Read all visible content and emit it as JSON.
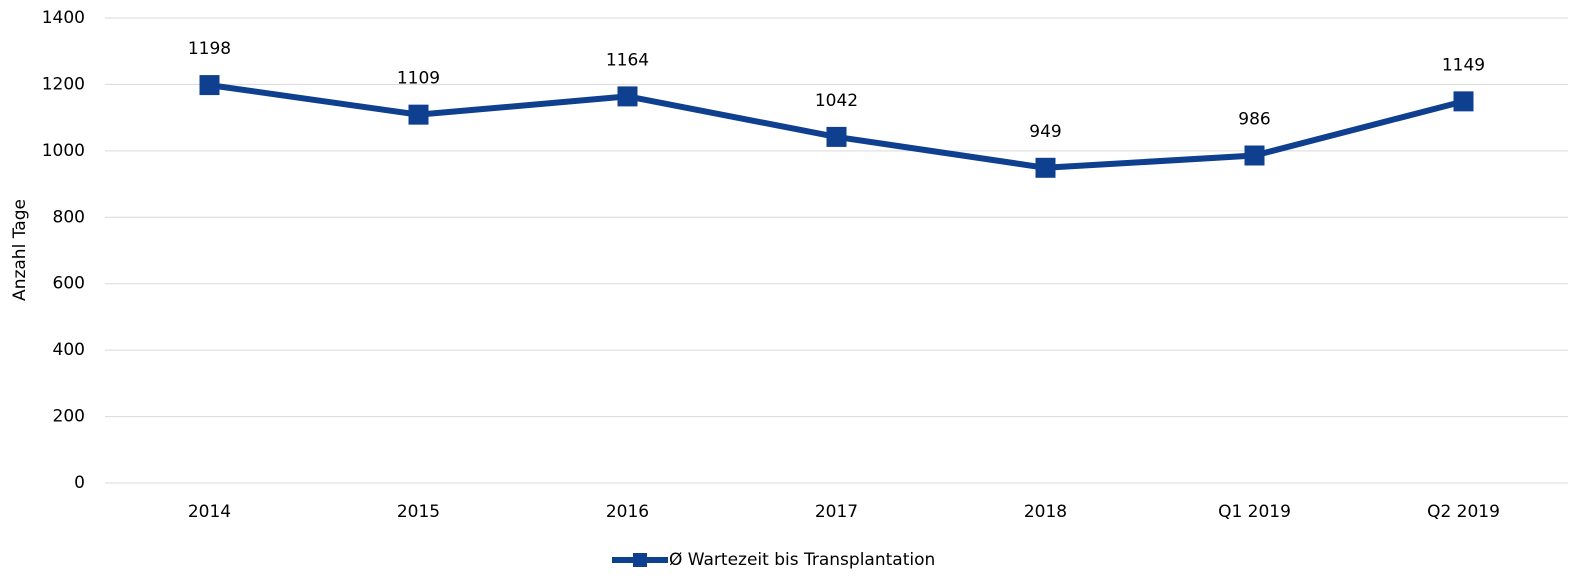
{
  "chart_data": {
    "type": "line",
    "categories": [
      "2014",
      "2015",
      "2016",
      "2017",
      "2018",
      "Q1 2019",
      "Q2 2019"
    ],
    "series": [
      {
        "name": "Ø Wartezeit bis Transplantation",
        "color": "#0f3f8f",
        "values": [
          1198,
          1109,
          1164,
          1042,
          949,
          986,
          1149
        ]
      }
    ],
    "ylabel": "Anzahl Tage",
    "ylim": [
      0,
      1400
    ],
    "yticks": [
      0,
      200,
      400,
      600,
      800,
      1000,
      1200,
      1400
    ],
    "grid": true,
    "legend": "bottom"
  }
}
